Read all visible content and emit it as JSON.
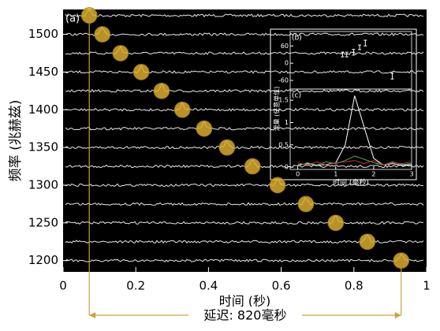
{
  "chart_data": [
    {
      "type": "scatter",
      "panel_label": "(a)",
      "xlabel": "时间 (秒)",
      "ylabel": "频率 (兆赫兹)",
      "annotation": "延迟: 820毫秒",
      "x": [
        0.072,
        0.108,
        0.158,
        0.215,
        0.271,
        0.328,
        0.388,
        0.451,
        0.521,
        0.59,
        0.668,
        0.75,
        0.837,
        0.93
      ],
      "values": [
        1525,
        1500,
        1475,
        1450,
        1425,
        1400,
        1375,
        1350,
        1325,
        1300,
        1275,
        1250,
        1225,
        1200
      ],
      "color": "#d9ab2e",
      "xlim": [
        0,
        1
      ],
      "xticks": [
        0,
        0.2,
        0.4,
        0.6,
        0.8,
        1
      ],
      "ylim": [
        1185,
        1533
      ],
      "yticks": [
        1200,
        1250,
        1300,
        1350,
        1400,
        1450,
        1500
      ]
    },
    {
      "type": "errorbar",
      "panel_label": "(b)",
      "x": [
        1.18,
        1.29,
        1.47,
        1.63,
        1.78,
        2.49
      ],
      "values": [
        30,
        30,
        38,
        55,
        70,
        -45
      ],
      "errors": [
        8,
        8,
        10,
        8,
        10,
        10
      ],
      "color": "#ffffff",
      "xlim": [
        -0.2,
        3
      ],
      "ylim": [
        -90,
        110
      ],
      "yticks": [
        -60,
        0,
        60
      ]
    },
    {
      "type": "line",
      "panel_label": "(c)",
      "xlabel": "时间 (毫秒)",
      "ylabel": "流量 (任意单位)",
      "x": [
        0,
        0.25,
        0.5,
        0.75,
        1,
        1.25,
        1.5,
        1.75,
        2,
        2.25,
        2.5,
        2.75,
        3
      ],
      "series": [
        {
          "color": "#ffffff",
          "values": [
            0.05,
            0.08,
            0.04,
            0.06,
            0.1,
            0.5,
            1.6,
            0.9,
            0.2,
            0.05,
            0.08,
            0.04,
            0.06
          ]
        },
        {
          "color": "#3cb44b",
          "values": [
            0.02,
            0.1,
            0.05,
            0.12,
            0.08,
            0.15,
            0.25,
            0.18,
            0.1,
            0.05,
            0.12,
            0.06,
            0.08
          ]
        },
        {
          "color": "#d03030",
          "values": [
            0.1,
            0.05,
            0.12,
            0.05,
            0.1,
            0.12,
            0.15,
            0.08,
            0.15,
            0.05,
            0.1,
            0.08,
            0.12
          ]
        }
      ],
      "xlim": [
        -0.2,
        3
      ],
      "xticks": [
        0,
        1,
        2,
        3
      ],
      "ylim": [
        -0.05,
        1.75
      ],
      "yticks": [
        0,
        0.5,
        1,
        1.5
      ]
    }
  ]
}
